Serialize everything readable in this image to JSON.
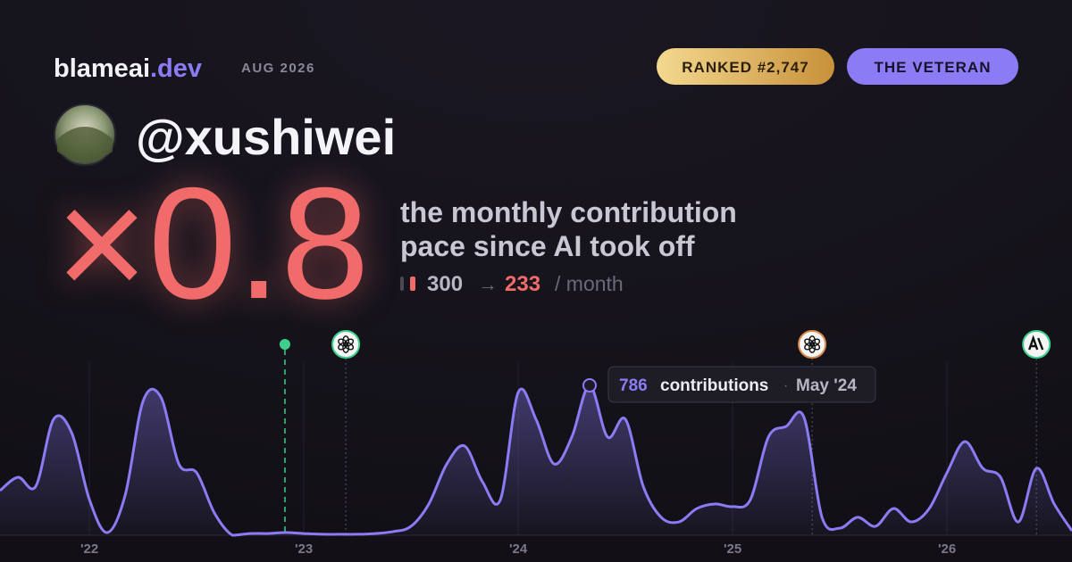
{
  "header": {
    "brand": "blameai",
    "brand_suffix": ".dev",
    "date": "AUG 2026",
    "rank_badge": "RANKED #2,747",
    "title_badge": "THE VETERAN",
    "username": "@xushiwei",
    "multiplier": "×0.8",
    "description": [
      "the monthly contribution",
      "pace since AI took off"
    ],
    "pace_before": 300,
    "pace_arrow": "→",
    "pace_after": 233,
    "pace_unit": "/ month"
  },
  "chart_data": {
    "type": "area",
    "color": "#8b7cf6",
    "x": [
      2021.583,
      2021.667,
      2021.75,
      2021.833,
      2021.917,
      2022,
      2022.083,
      2022.167,
      2022.25,
      2022.333,
      2022.417,
      2022.5,
      2022.583,
      2022.667,
      2022.75,
      2022.833,
      2022.917,
      2023,
      2023.083,
      2023.167,
      2023.25,
      2023.333,
      2023.417,
      2023.5,
      2023.583,
      2023.667,
      2023.75,
      2023.833,
      2023.917,
      2024,
      2024.083,
      2024.167,
      2024.25,
      2024.333,
      2024.417,
      2024.5,
      2024.583,
      2024.667,
      2024.75,
      2024.833,
      2024.917,
      2025,
      2025.083,
      2025.167,
      2025.25,
      2025.333,
      2025.417,
      2025.5,
      2025.583,
      2025.667,
      2025.75,
      2025.833,
      2025.917,
      2026,
      2026.083,
      2026.167,
      2026.25,
      2026.333,
      2026.417,
      2026.5,
      2026.583
    ],
    "values": [
      234,
      304,
      257,
      608,
      538,
      187,
      14,
      211,
      702,
      725,
      374,
      328,
      117,
      0,
      9,
      9,
      14,
      9,
      5,
      5,
      5,
      9,
      19,
      47,
      164,
      374,
      468,
      281,
      187,
      749,
      608,
      374,
      515,
      786,
      515,
      608,
      257,
      94,
      70,
      140,
      164,
      150,
      187,
      515,
      571,
      618,
      94,
      37,
      94,
      47,
      140,
      70,
      140,
      328,
      491,
      351,
      304,
      70,
      351,
      164,
      23
    ],
    "xlim": [
      2021.583,
      2026.583
    ],
    "ylim": [
      0,
      800
    ],
    "xticks": [
      {
        "value": 2022,
        "label": "'22"
      },
      {
        "value": 2023,
        "label": "'23"
      },
      {
        "value": 2024,
        "label": "'24"
      },
      {
        "value": 2025,
        "label": "'25"
      },
      {
        "value": 2026,
        "label": "'26"
      }
    ],
    "grid": true,
    "events": [
      {
        "x": 2022.912,
        "color": "#3ecf8e",
        "icon": "dot"
      },
      {
        "x": 2023.196,
        "color": "#3ecf8e",
        "icon": "openai"
      },
      {
        "x": 2025.371,
        "color": "#d98a4a",
        "icon": "openai"
      },
      {
        "x": 2026.417,
        "color": "#3ecf8e",
        "icon": "anthropic"
      }
    ],
    "tooltip": {
      "x": 2024.333,
      "unit": "contributions",
      "separator": "·",
      "label": "May '24"
    }
  }
}
